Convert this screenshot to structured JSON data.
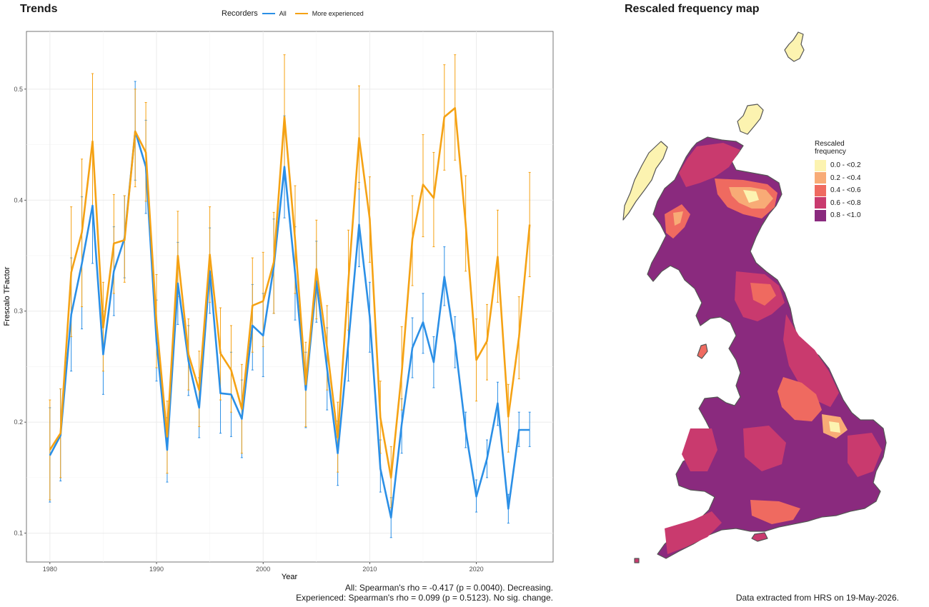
{
  "trends_panel": {
    "title": "Trends",
    "legend_title": "Recorders",
    "series_labels": [
      "All",
      "More experienced"
    ],
    "stats": {
      "all": "All: Spearman's rho = -0.417 (p = 0.0040). Decreasing.",
      "experienced": "Experienced: Spearman's rho = 0.099 (p = 0.5123). No sig. change."
    }
  },
  "map_panel": {
    "title": "Rescaled frequency map",
    "legend_title": "Rescaled\nfrequency",
    "legend_items": [
      {
        "label": "0.0 - <0.2",
        "color": "#FCF3B0"
      },
      {
        "label": "0.2 - <0.4",
        "color": "#F8AB76"
      },
      {
        "label": "0.4 - <0.6",
        "color": "#EF6A60"
      },
      {
        "label": "0.6 - <0.8",
        "color": "#C93A6E"
      },
      {
        "label": "0.8 - <1.0",
        "color": "#8A2A7E"
      }
    ],
    "note": "Data extracted from HRS on 19-May-2026."
  },
  "colors": {
    "all": "#2B8FE6",
    "experienced": "#F5A214",
    "grid": "#EBEBEB"
  },
  "chart_data": {
    "type": "line",
    "xlabel": "Year",
    "ylabel": "Frescalo TFactor",
    "xlim": [
      1977.8,
      2027.2
    ],
    "ylim": [
      0.074,
      0.552
    ],
    "x_ticks": [
      1980,
      1990,
      2000,
      2010,
      2020
    ],
    "y_ticks": [
      0.1,
      0.2,
      0.3,
      0.4,
      0.5
    ],
    "grid": true,
    "legend_position": "top",
    "x": [
      1980,
      1981,
      1982,
      1983,
      1984,
      1985,
      1986,
      1987,
      1988,
      1989,
      1990,
      1991,
      1992,
      1993,
      1994,
      1995,
      1996,
      1997,
      1998,
      1999,
      2000,
      2001,
      2002,
      2003,
      2004,
      2005,
      2006,
      2007,
      2008,
      2009,
      2010,
      2011,
      2012,
      2013,
      2014,
      2015,
      2016,
      2017,
      2018,
      2019,
      2020,
      2021,
      2022,
      2023,
      2024,
      2025
    ],
    "series": [
      {
        "name": "All",
        "color": "#2B8FE6",
        "values": [
          0.17,
          0.188,
          0.297,
          0.343,
          0.395,
          0.261,
          0.336,
          0.366,
          0.462,
          0.43,
          0.273,
          0.175,
          0.325,
          0.255,
          0.213,
          0.336,
          0.226,
          0.225,
          0.203,
          0.287,
          0.278,
          0.34,
          0.43,
          0.334,
          0.229,
          0.327,
          0.248,
          0.172,
          0.272,
          0.378,
          0.295,
          0.158,
          0.114,
          0.198,
          0.267,
          0.29,
          0.254,
          0.331,
          0.272,
          0.192,
          0.133,
          0.167,
          0.217,
          0.122,
          0.193,
          0.193
        ],
        "lower": [
          0.128,
          0.147,
          0.246,
          0.284,
          0.343,
          0.225,
          0.296,
          0.33,
          0.418,
          0.388,
          0.237,
          0.146,
          0.288,
          0.224,
          0.186,
          0.298,
          0.19,
          0.187,
          0.168,
          0.247,
          0.241,
          0.298,
          0.384,
          0.292,
          0.195,
          0.29,
          0.211,
          0.143,
          0.237,
          0.34,
          0.263,
          0.137,
          0.096,
          0.172,
          0.24,
          0.262,
          0.231,
          0.305,
          0.249,
          0.177,
          0.119,
          0.15,
          0.197,
          0.109,
          0.178,
          0.178
        ],
        "upper": [
          0.213,
          0.23,
          0.348,
          0.403,
          0.447,
          0.3,
          0.376,
          0.404,
          0.507,
          0.472,
          0.31,
          0.204,
          0.362,
          0.287,
          0.24,
          0.375,
          0.263,
          0.263,
          0.238,
          0.324,
          0.316,
          0.383,
          0.476,
          0.376,
          0.263,
          0.363,
          0.285,
          0.201,
          0.308,
          0.416,
          0.326,
          0.184,
          0.132,
          0.221,
          0.294,
          0.316,
          0.277,
          0.358,
          0.295,
          0.209,
          0.148,
          0.184,
          0.236,
          0.135,
          0.209,
          0.209
        ]
      },
      {
        "name": "More experienced",
        "color": "#F5A214",
        "values": [
          0.175,
          0.19,
          0.335,
          0.371,
          0.453,
          0.285,
          0.361,
          0.364,
          0.462,
          0.443,
          0.29,
          0.187,
          0.35,
          0.261,
          0.229,
          0.351,
          0.262,
          0.247,
          0.212,
          0.305,
          0.309,
          0.344,
          0.475,
          0.364,
          0.234,
          0.338,
          0.267,
          0.186,
          0.328,
          0.456,
          0.383,
          0.204,
          0.15,
          0.244,
          0.365,
          0.414,
          0.402,
          0.475,
          0.483,
          0.378,
          0.256,
          0.273,
          0.349,
          0.205,
          0.277,
          0.378
        ],
        "lower": [
          0.13,
          0.15,
          0.277,
          0.304,
          0.393,
          0.246,
          0.316,
          0.326,
          0.412,
          0.399,
          0.249,
          0.154,
          0.313,
          0.229,
          0.196,
          0.308,
          0.22,
          0.209,
          0.172,
          0.263,
          0.268,
          0.298,
          0.422,
          0.316,
          0.196,
          0.293,
          0.229,
          0.155,
          0.283,
          0.41,
          0.344,
          0.172,
          0.123,
          0.211,
          0.323,
          0.367,
          0.358,
          0.427,
          0.436,
          0.336,
          0.219,
          0.238,
          0.308,
          0.173,
          0.239,
          0.331
        ],
        "upper": [
          0.22,
          0.23,
          0.394,
          0.437,
          0.514,
          0.326,
          0.405,
          0.404,
          0.5,
          0.488,
          0.333,
          0.219,
          0.39,
          0.293,
          0.264,
          0.394,
          0.303,
          0.287,
          0.252,
          0.348,
          0.353,
          0.389,
          0.531,
          0.413,
          0.272,
          0.382,
          0.305,
          0.218,
          0.373,
          0.503,
          0.421,
          0.237,
          0.178,
          0.286,
          0.404,
          0.459,
          0.443,
          0.522,
          0.531,
          0.422,
          0.293,
          0.306,
          0.391,
          0.234,
          0.313,
          0.425
        ]
      }
    ]
  }
}
